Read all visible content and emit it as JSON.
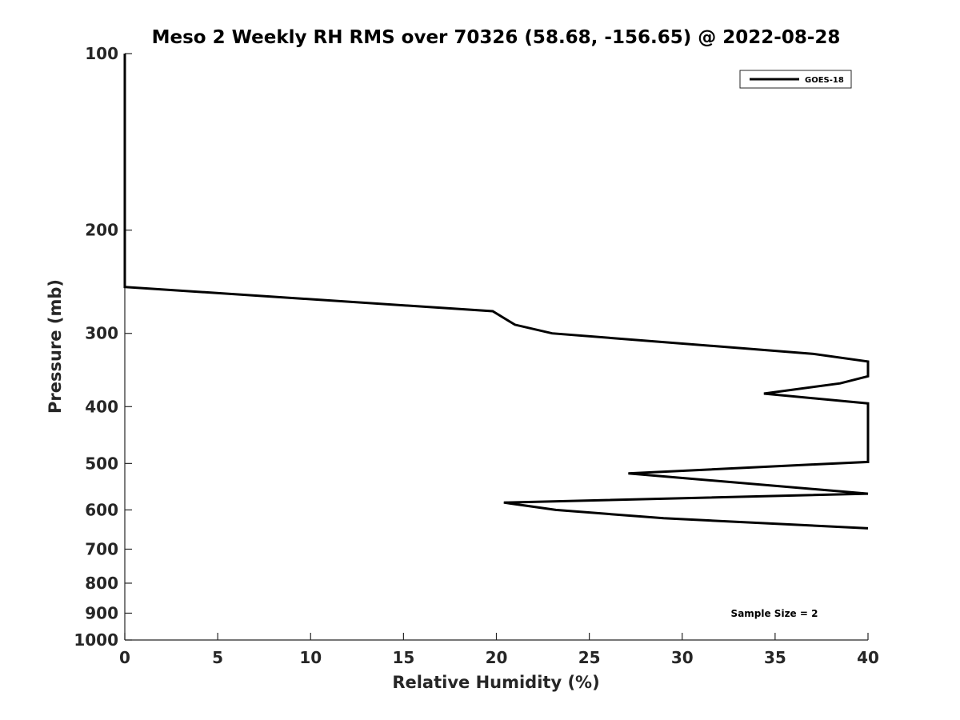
{
  "chart_data": {
    "type": "line",
    "title": "Meso 2 Weekly RH RMS over 70326 (58.68, -156.65) @ 2022-08-28",
    "xlabel": "Relative Humidity (%)",
    "ylabel": "Pressure (mb)",
    "xlim": [
      0,
      40
    ],
    "ylim": [
      100,
      1000
    ],
    "y_scale": "log",
    "y_direction": "reversed",
    "x_ticks": [
      0,
      5,
      10,
      15,
      20,
      25,
      30,
      35,
      40
    ],
    "x_tick_labels": [
      "0",
      "5",
      "10",
      "15",
      "20",
      "25",
      "30",
      "35",
      "40"
    ],
    "y_ticks": [
      100,
      200,
      300,
      400,
      500,
      600,
      700,
      800,
      900,
      1000
    ],
    "y_tick_labels": [
      "100",
      "200",
      "300",
      "400",
      "500",
      "600",
      "700",
      "800",
      "900",
      "1000"
    ],
    "grid": false,
    "legend_position": "top-right",
    "annotation": "Sample Size = 2",
    "series": [
      {
        "name": "GOES-18",
        "color": "#000000",
        "points": [
          {
            "x": 0.0,
            "y": 100
          },
          {
            "x": 0.0,
            "y": 150
          },
          {
            "x": 0.0,
            "y": 200
          },
          {
            "x": 0.0,
            "y": 250
          },
          {
            "x": 19.8,
            "y": 275
          },
          {
            "x": 21.0,
            "y": 290
          },
          {
            "x": 23.0,
            "y": 300
          },
          {
            "x": 37.0,
            "y": 325
          },
          {
            "x": 40.0,
            "y": 335
          },
          {
            "x": 40.0,
            "y": 340
          },
          {
            "x": 40.0,
            "y": 355
          },
          {
            "x": 38.5,
            "y": 365
          },
          {
            "x": 34.4,
            "y": 380
          },
          {
            "x": 40.0,
            "y": 395
          },
          {
            "x": 40.0,
            "y": 400
          },
          {
            "x": 40.0,
            "y": 450
          },
          {
            "x": 40.0,
            "y": 497
          },
          {
            "x": 37.0,
            "y": 502
          },
          {
            "x": 27.1,
            "y": 520
          },
          {
            "x": 40.0,
            "y": 563
          },
          {
            "x": 20.4,
            "y": 583
          },
          {
            "x": 23.2,
            "y": 600
          },
          {
            "x": 29.0,
            "y": 620
          },
          {
            "x": 40.0,
            "y": 645
          }
        ]
      }
    ]
  }
}
